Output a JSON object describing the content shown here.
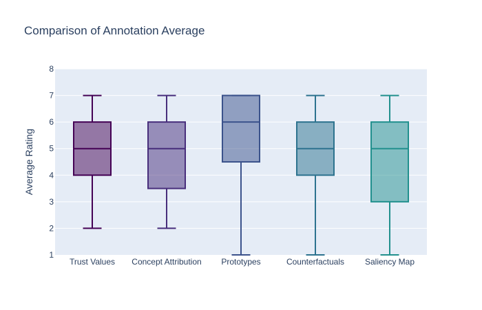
{
  "chart_data": {
    "type": "box",
    "title": "Comparison of Annotation Average",
    "xlabel": "",
    "ylabel": "Average Rating",
    "ylim": [
      1,
      8
    ],
    "yticks": [
      1,
      2,
      3,
      4,
      5,
      6,
      7,
      8
    ],
    "grid": true,
    "plot_background": "#E5ECF6",
    "series": [
      {
        "name": "Trust Values",
        "min": 2,
        "q1": 4,
        "median": 5,
        "q3": 6,
        "max": 7,
        "color": "#440154"
      },
      {
        "name": "Concept Attribution",
        "min": 2,
        "q1": 3.5,
        "median": 5,
        "q3": 6,
        "max": 7,
        "color": "#472D7B"
      },
      {
        "name": "Prototypes",
        "min": 1,
        "q1": 4.5,
        "median": 6,
        "q3": 7,
        "max": 7,
        "color": "#3B528B"
      },
      {
        "name": "Counterfactuals",
        "min": 1,
        "q1": 4,
        "median": 5,
        "q3": 6,
        "max": 7,
        "color": "#2C728E"
      },
      {
        "name": "Saliency Map",
        "min": 1,
        "q1": 3,
        "median": 5,
        "q3": 6,
        "max": 7,
        "color": "#21908D"
      }
    ]
  }
}
